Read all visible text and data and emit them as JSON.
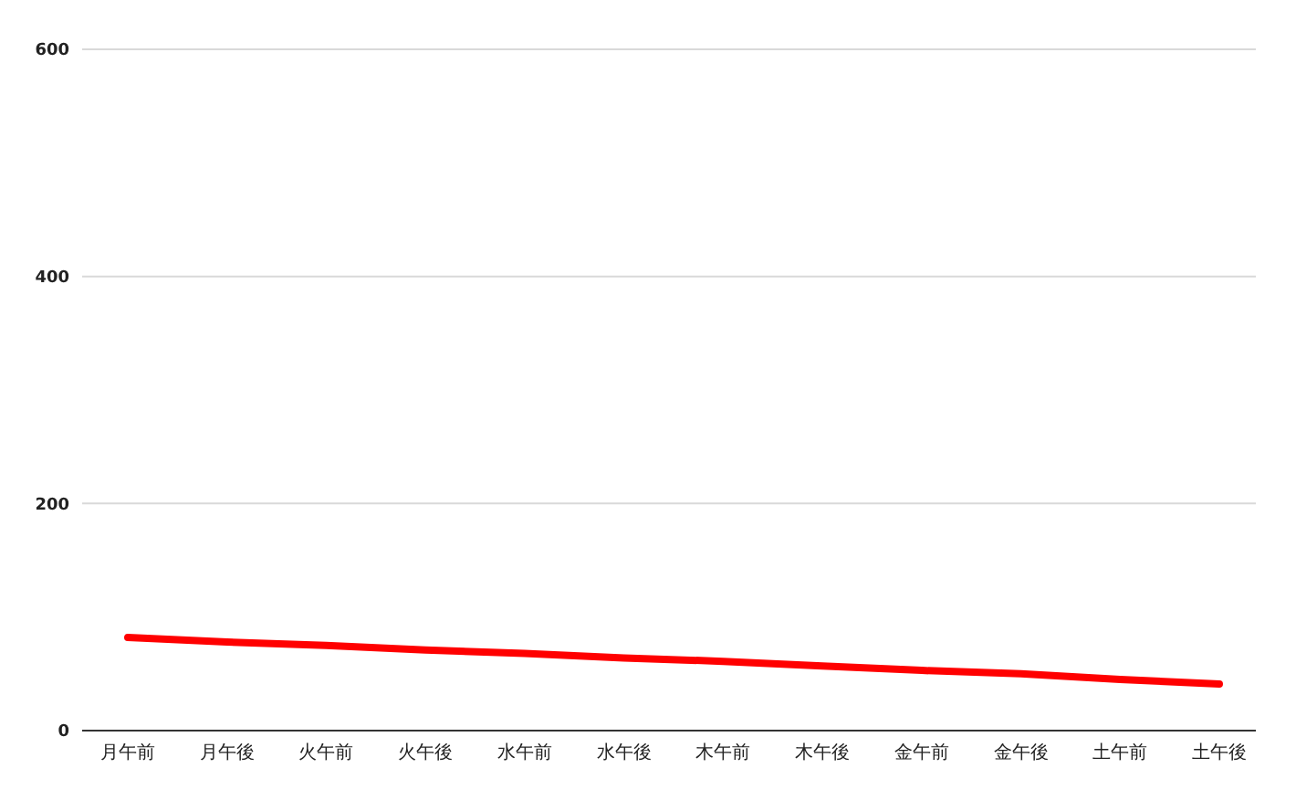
{
  "chart_data": {
    "type": "line",
    "categories": [
      "月午前",
      "月午後",
      "火午前",
      "火午後",
      "水午前",
      "水午後",
      "木午前",
      "木午後",
      "金午前",
      "金午後",
      "土午前",
      "土午後"
    ],
    "series": [
      {
        "color": "#ff0000",
        "values": [
          82,
          78,
          75,
          71,
          68,
          64,
          61,
          57,
          53,
          50,
          45,
          41
        ]
      }
    ],
    "ylim": [
      0,
      600
    ],
    "yticks": [
      0,
      200,
      400,
      600
    ],
    "grid": "y",
    "marker": "none",
    "line_style": "solid"
  }
}
